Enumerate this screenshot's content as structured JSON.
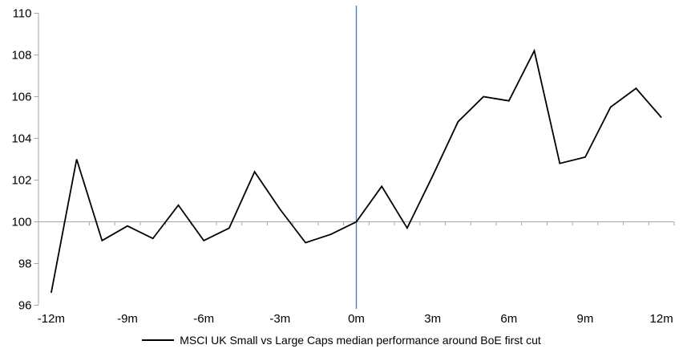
{
  "chart_data": {
    "type": "line",
    "title": "",
    "x": [
      -12,
      -11,
      -10,
      -9,
      -8,
      -7,
      -6,
      -5,
      -4,
      -3,
      -2,
      -1,
      0,
      1,
      2,
      3,
      4,
      5,
      6,
      7,
      8,
      9,
      10,
      11,
      12
    ],
    "series": [
      {
        "name": "MSCI UK Small vs Large Caps median performance around BoE first cut",
        "color": "#000000",
        "values": [
          96.6,
          103.0,
          99.1,
          99.8,
          99.2,
          100.8,
          99.1,
          99.7,
          102.4,
          100.6,
          99.0,
          99.4,
          100.0,
          101.7,
          99.7,
          102.2,
          104.8,
          106.0,
          105.8,
          108.2,
          102.8,
          103.1,
          105.5,
          106.4,
          105.0
        ]
      }
    ],
    "xlabel": "",
    "ylabel": "",
    "xlim": [
      -12.5,
      12.5
    ],
    "ylim": [
      96,
      110
    ],
    "y_ticks": [
      96,
      98,
      100,
      102,
      104,
      106,
      108,
      110
    ],
    "x_ticks": [
      {
        "value": -12,
        "label": "-12m"
      },
      {
        "value": -9,
        "label": "-9m"
      },
      {
        "value": -6,
        "label": "-6m"
      },
      {
        "value": -3,
        "label": "-3m"
      },
      {
        "value": 0,
        "label": "0m"
      },
      {
        "value": 3,
        "label": "3m"
      },
      {
        "value": 6,
        "label": "6m"
      },
      {
        "value": 9,
        "label": "9m"
      },
      {
        "value": 12,
        "label": "12m"
      }
    ],
    "baseline": 100,
    "event_line": {
      "x": 0,
      "color": "#4f81bd"
    },
    "grid": false,
    "legend_position": "bottom",
    "colors": {
      "axis": "#a6a6a6",
      "series_line": "#000000",
      "event_line": "#4f81bd",
      "text": "#000000",
      "background": "#ffffff"
    }
  }
}
